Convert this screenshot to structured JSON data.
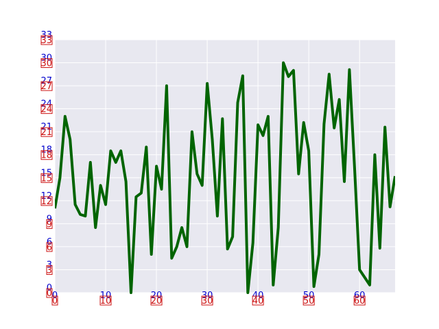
{
  "chart_data": {
    "type": "line",
    "title": "",
    "xlabel": "",
    "ylabel": "",
    "xlim": [
      0,
      67
    ],
    "ylim": [
      0,
      33
    ],
    "xticks": [
      "0",
      "10",
      "20",
      "30",
      "40",
      "50",
      "60"
    ],
    "yticks": [
      "0",
      "3",
      "6",
      "9",
      "12",
      "15",
      "18",
      "21",
      "24",
      "27",
      "30",
      "33"
    ],
    "grid": true,
    "colors": {
      "line": "#006400",
      "plot_bg": "#e8e8f0",
      "grid": "#ffffff",
      "tick_label_primary": "#0000cc",
      "tick_label_secondary": "#cc1111"
    },
    "series": [
      {
        "x": [
          0,
          1,
          2,
          3,
          4,
          5,
          6,
          7,
          8,
          9,
          10,
          11,
          12,
          13,
          14,
          15,
          16,
          17,
          18,
          19,
          20,
          21,
          22,
          23,
          24,
          25,
          26,
          27,
          28,
          29,
          30,
          31,
          32,
          33,
          34,
          35,
          36,
          37,
          38,
          39,
          40,
          41,
          42,
          43,
          44,
          45,
          46,
          47,
          48,
          49,
          50,
          51,
          52,
          53,
          54,
          55,
          56,
          57,
          58,
          59,
          60,
          61,
          62,
          63,
          64,
          65,
          66,
          67
        ],
        "values": [
          11,
          15,
          23,
          20,
          11.5,
          10.2,
          10,
          17,
          8.5,
          14,
          11.5,
          18.5,
          17,
          18.5,
          14.5,
          0,
          12.5,
          13,
          19,
          5,
          16.5,
          13.5,
          27,
          4.5,
          6,
          8.5,
          6,
          21,
          15.5,
          14,
          27.3,
          20,
          10,
          22.7,
          5.7,
          7.3,
          24.8,
          28.3,
          0,
          6.5,
          21.9,
          20.5,
          23,
          1,
          8.5,
          30,
          28.2,
          29,
          15.5,
          22.2,
          18.5,
          0.8,
          5,
          22,
          28.5,
          21.5,
          25.2,
          14.5,
          29.1,
          16.5,
          3,
          2,
          1,
          18,
          5.8,
          21.6,
          11.2,
          15.2
        ]
      }
    ]
  }
}
